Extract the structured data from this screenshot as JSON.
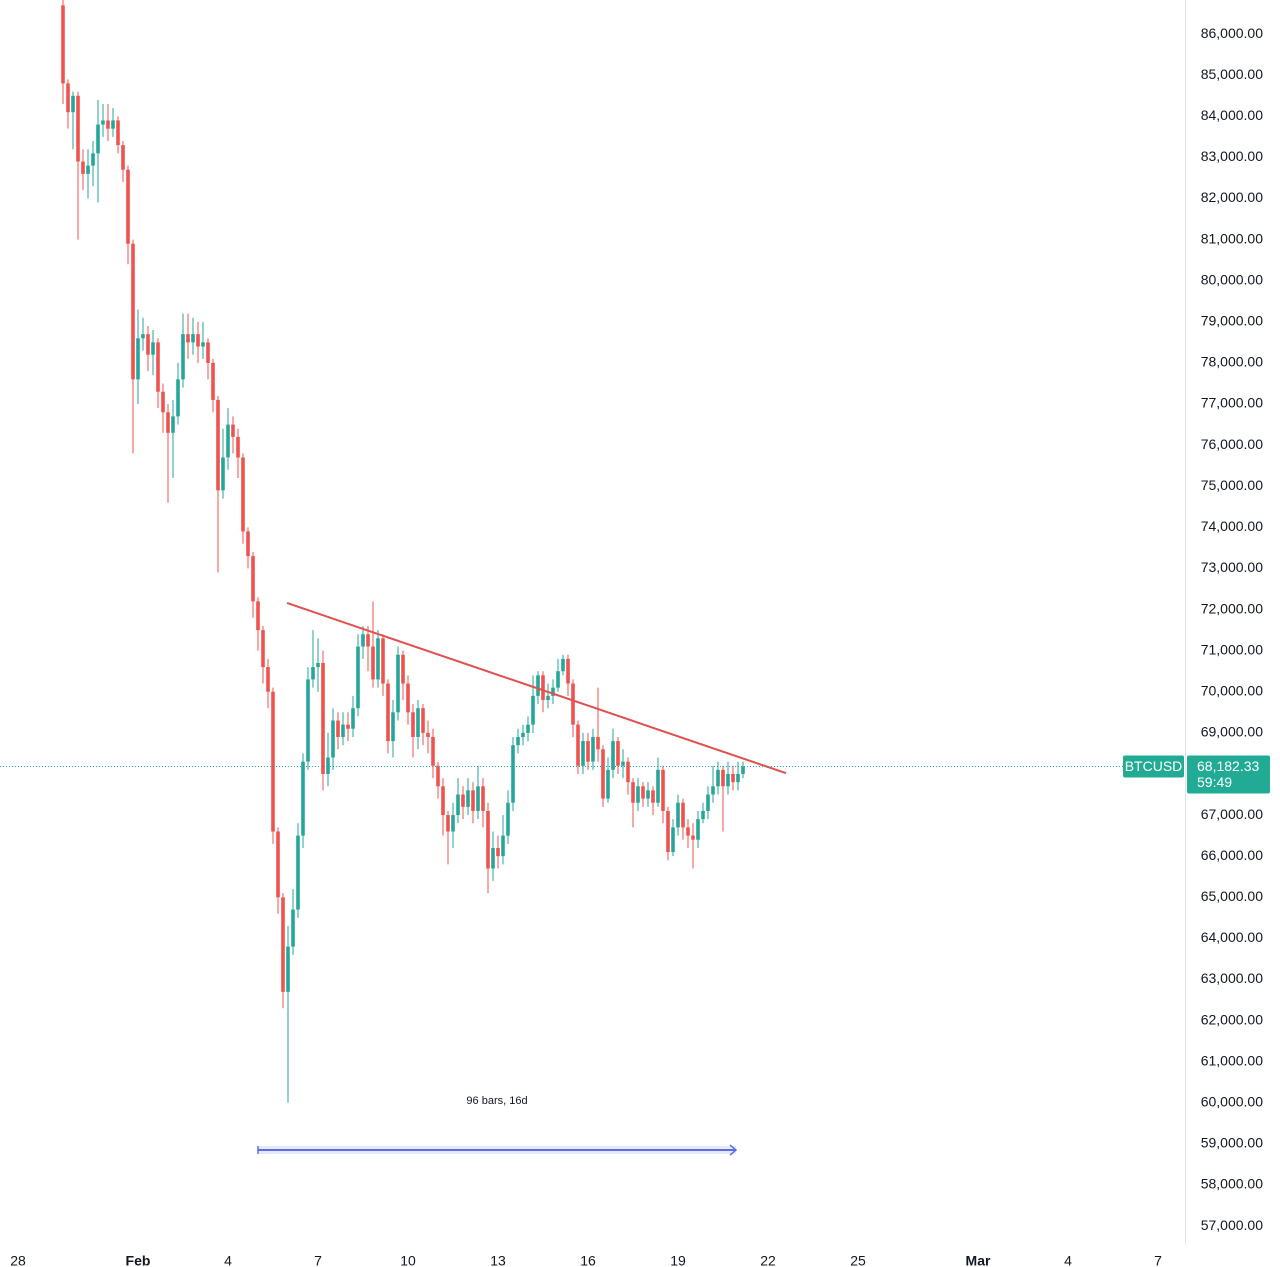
{
  "chart_data": {
    "type": "candlestick",
    "symbol": "BTCUSD",
    "up_color": "#26a69a",
    "down_color": "#ef5350",
    "grid": false,
    "x": [
      -60,
      -56,
      -52,
      -48,
      -44,
      -40,
      -36,
      -32,
      -28,
      -24,
      -20,
      -16,
      -12,
      -8,
      -4,
      0,
      4,
      8,
      12,
      16,
      20,
      24,
      28,
      32,
      36,
      40,
      44,
      48,
      52,
      56,
      60,
      64,
      68,
      72,
      76,
      80,
      84,
      88,
      92,
      96,
      100,
      104,
      108,
      112,
      116,
      120,
      124,
      128,
      132,
      136,
      140,
      144,
      148,
      152,
      156,
      160,
      164,
      168,
      172,
      176,
      180,
      184,
      188,
      192,
      196,
      200,
      204,
      208,
      212,
      216,
      220,
      224,
      228,
      232,
      236,
      240,
      244,
      248,
      252,
      256,
      260,
      264,
      268,
      272,
      276,
      280,
      284,
      288,
      292,
      296,
      300,
      304,
      308,
      312,
      316,
      320,
      324,
      328,
      332,
      336,
      340,
      344,
      348,
      352,
      356,
      360,
      364,
      368,
      372,
      376,
      380,
      384,
      388,
      392,
      396,
      400,
      404,
      408,
      412,
      416,
      420,
      424,
      428,
      432,
      436,
      440,
      444,
      448,
      452,
      456,
      460,
      464,
      468,
      472,
      476,
      480,
      484
    ],
    "open": [
      86700,
      84800,
      84100,
      84500,
      82900,
      82600,
      82800,
      83100,
      83800,
      83900,
      83700,
      83900,
      83300,
      82700,
      80900,
      77600,
      78600,
      78700,
      78200,
      78500,
      77300,
      76800,
      76300,
      76700,
      77600,
      78700,
      78500,
      78700,
      78400,
      78500,
      78000,
      77100,
      74900,
      75700,
      76500,
      76200,
      75700,
      73900,
      73300,
      72200,
      71500,
      70600,
      70000,
      66600,
      65000,
      62700,
      63800,
      64700,
      66500,
      68300,
      70300,
      70600,
      70700,
      68000,
      68400,
      69300,
      68900,
      69200,
      69100,
      69600,
      71100,
      71400,
      71100,
      70300,
      71300,
      70200,
      68800,
      69500,
      70900,
      70200,
      69500,
      68900,
      69600,
      69000,
      68900,
      68200,
      67700,
      67000,
      66600,
      67000,
      67500,
      67200,
      67600,
      67100,
      67700,
      67100,
      65700,
      66200,
      66000,
      66500,
      67300,
      68700,
      68900,
      69000,
      69200,
      69900,
      70400,
      69800,
      69900,
      70100,
      70500,
      70800,
      70200,
      69200,
      68200,
      68800,
      68300,
      68900,
      68600,
      67400,
      68100,
      68800,
      68200,
      68300,
      67800,
      67300,
      67700,
      67400,
      67600,
      67300,
      68100,
      67100,
      66100,
      66700,
      67300,
      66700,
      66500,
      66400,
      66900,
      67100,
      67500,
      67700,
      68100,
      67700,
      68000,
      67800,
      68000
    ],
    "high": [
      86900,
      84900,
      84600,
      84600,
      83200,
      83200,
      83400,
      84400,
      84300,
      84300,
      84200,
      84000,
      83400,
      82800,
      81000,
      79300,
      79100,
      78900,
      78800,
      78600,
      77500,
      77000,
      77100,
      78000,
      79200,
      79200,
      79100,
      79000,
      79000,
      78600,
      78100,
      77200,
      76400,
      76900,
      76700,
      76400,
      75800,
      74000,
      73400,
      72300,
      71600,
      70800,
      70100,
      66700,
      65100,
      64300,
      65200,
      66800,
      68500,
      70600,
      71500,
      71300,
      71000,
      69000,
      69600,
      69500,
      69500,
      69500,
      69900,
      71400,
      71600,
      71600,
      72200,
      71500,
      71400,
      70300,
      69800,
      71100,
      71000,
      70400,
      69700,
      69800,
      69700,
      69300,
      69100,
      68300,
      67900,
      67100,
      67300,
      67900,
      67700,
      67900,
      67800,
      68200,
      67900,
      67300,
      66600,
      66500,
      67000,
      67600,
      68900,
      69100,
      69200,
      69400,
      70400,
      70500,
      70500,
      70200,
      70300,
      70800,
      70900,
      70900,
      70300,
      69300,
      69000,
      69000,
      69100,
      70100,
      68700,
      68400,
      69100,
      68900,
      68600,
      68400,
      67900,
      67900,
      67800,
      67800,
      67700,
      68400,
      68200,
      67200,
      66900,
      67500,
      67400,
      66900,
      66800,
      67100,
      67300,
      67700,
      68200,
      68300,
      68200,
      68300,
      68200,
      68300,
      68300
    ],
    "low": [
      84300,
      83700,
      83200,
      81000,
      82200,
      82000,
      82300,
      81900,
      83500,
      83400,
      83500,
      83100,
      82400,
      80400,
      75800,
      77000,
      78300,
      77800,
      77700,
      76900,
      76300,
      74600,
      75200,
      76500,
      77400,
      78100,
      78200,
      78000,
      78100,
      77600,
      76800,
      72900,
      74700,
      75400,
      75800,
      75200,
      73600,
      73000,
      71800,
      71000,
      70200,
      69600,
      66300,
      64600,
      62300,
      60000,
      63600,
      64500,
      66200,
      68100,
      70100,
      70000,
      67600,
      67700,
      68100,
      68600,
      68700,
      68800,
      68900,
      69400,
      70800,
      70500,
      70100,
      70100,
      69900,
      68500,
      68400,
      69300,
      69800,
      69200,
      68400,
      68600,
      68700,
      68500,
      67900,
      67400,
      66500,
      65800,
      66200,
      66800,
      66900,
      67000,
      66800,
      66900,
      66700,
      65100,
      65400,
      65700,
      65800,
      66300,
      67100,
      68500,
      68700,
      68800,
      69000,
      69700,
      69500,
      69600,
      69700,
      70000,
      70400,
      69900,
      68900,
      68000,
      68000,
      68100,
      68100,
      68300,
      67200,
      67300,
      67900,
      68000,
      67900,
      67500,
      66700,
      67100,
      67200,
      67200,
      67000,
      67200,
      66800,
      65900,
      66000,
      66500,
      66400,
      66200,
      65700,
      66200,
      66800,
      66900,
      67300,
      67500,
      66600,
      67500,
      67600,
      67600,
      67900
    ],
    "close": [
      84800,
      84100,
      84500,
      82900,
      82600,
      82800,
      83100,
      83800,
      83900,
      83700,
      83900,
      83300,
      82700,
      80900,
      77600,
      78600,
      78700,
      78200,
      78500,
      77300,
      76800,
      76300,
      76700,
      77600,
      78700,
      78500,
      78700,
      78400,
      78500,
      78000,
      77100,
      74900,
      75700,
      76500,
      76200,
      75700,
      73900,
      73300,
      72200,
      71500,
      70600,
      70000,
      66600,
      65000,
      62700,
      63800,
      64700,
      66500,
      68300,
      70300,
      70600,
      70700,
      68000,
      68400,
      69300,
      68900,
      69200,
      69100,
      69600,
      71100,
      71400,
      71100,
      70300,
      71300,
      70200,
      68800,
      69500,
      70900,
      70200,
      69500,
      68900,
      69600,
      69000,
      68900,
      68200,
      67700,
      67000,
      66600,
      67000,
      67500,
      67200,
      67600,
      67100,
      67700,
      67100,
      65700,
      66200,
      66000,
      66500,
      67300,
      68700,
      68900,
      69000,
      69200,
      69900,
      70400,
      69800,
      69900,
      70100,
      70500,
      70800,
      70200,
      69200,
      68200,
      68800,
      68300,
      68900,
      68600,
      67400,
      68100,
      68800,
      68200,
      68300,
      67800,
      67300,
      67700,
      67400,
      67600,
      67300,
      68100,
      67100,
      66100,
      66700,
      67300,
      66700,
      66500,
      66400,
      66900,
      67100,
      67500,
      67700,
      68100,
      67700,
      68000,
      67800,
      68000,
      68182.33
    ],
    "last_price_label": "68,182.33",
    "countdown": "59:49",
    "xlim": [
      -110.4,
      837.6
    ],
    "xticks": [
      {
        "value": -96,
        "label": "28"
      },
      {
        "value": 0,
        "label": "Feb"
      },
      {
        "value": 72,
        "label": "4"
      },
      {
        "value": 144,
        "label": "7"
      },
      {
        "value": 216,
        "label": "10"
      },
      {
        "value": 288,
        "label": "13"
      },
      {
        "value": 360,
        "label": "16"
      },
      {
        "value": 432,
        "label": "19"
      },
      {
        "value": 504,
        "label": "22"
      },
      {
        "value": 576,
        "label": "25"
      },
      {
        "value": 672,
        "label": "Mar"
      },
      {
        "value": 744,
        "label": "4"
      },
      {
        "value": 816,
        "label": "7"
      }
    ],
    "ylim": [
      56540,
      86830
    ],
    "yticks": [
      {
        "value": 57000,
        "label": "57,000.00"
      },
      {
        "value": 58000,
        "label": "58,000.00"
      },
      {
        "value": 59000,
        "label": "59,000.00"
      },
      {
        "value": 60000,
        "label": "60,000.00"
      },
      {
        "value": 61000,
        "label": "61,000.00"
      },
      {
        "value": 62000,
        "label": "62,000.00"
      },
      {
        "value": 63000,
        "label": "63,000.00"
      },
      {
        "value": 64000,
        "label": "64,000.00"
      },
      {
        "value": 65000,
        "label": "65,000.00"
      },
      {
        "value": 66000,
        "label": "66,000.00"
      },
      {
        "value": 67000,
        "label": "67,000.00"
      },
      {
        "value": 68000,
        "label": "68,000.00"
      },
      {
        "value": 69000,
        "label": "69,000.00"
      },
      {
        "value": 70000,
        "label": "70,000.00"
      },
      {
        "value": 71000,
        "label": "71,000.00"
      },
      {
        "value": 72000,
        "label": "72,000.00"
      },
      {
        "value": 73000,
        "label": "73,000.00"
      },
      {
        "value": 74000,
        "label": "74,000.00"
      },
      {
        "value": 75000,
        "label": "75,000.00"
      },
      {
        "value": 76000,
        "label": "76,000.00"
      },
      {
        "value": 77000,
        "label": "77,000.00"
      },
      {
        "value": 78000,
        "label": "78,000.00"
      },
      {
        "value": 79000,
        "label": "79,000.00"
      },
      {
        "value": 80000,
        "label": "80,000.00"
      },
      {
        "value": 81000,
        "label": "81,000.00"
      },
      {
        "value": 82000,
        "label": "82,000.00"
      },
      {
        "value": 83000,
        "label": "83,000.00"
      },
      {
        "value": 84000,
        "label": "84,000.00"
      },
      {
        "value": 85000,
        "label": "85,000.00"
      },
      {
        "value": 86000,
        "label": "86,000.00"
      }
    ],
    "trendline": {
      "x": [
        119.2,
        518.4
      ],
      "y": [
        72160,
        68020
      ],
      "color": "#e0504f"
    },
    "measure": {
      "label": "96 bars, 16d",
      "x": [
        96,
        478.4
      ],
      "y": 58850,
      "color": "#5b6ee1"
    }
  }
}
